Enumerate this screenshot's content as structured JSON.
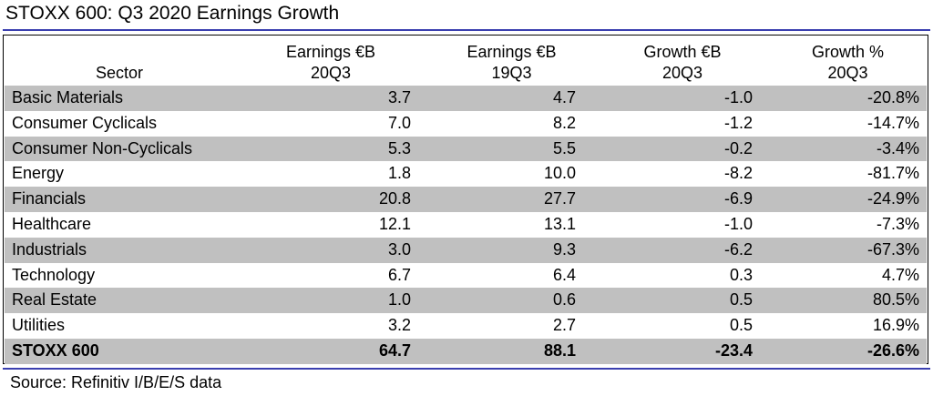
{
  "title": "STOXX 600: Q3 2020 Earnings Growth",
  "colors": {
    "rule": "#3a3fb0",
    "shade": "#c0c0c0",
    "text": "#000000"
  },
  "chart_data": {
    "type": "table",
    "columns": [
      {
        "line1": "",
        "line2": "Sector"
      },
      {
        "line1": "Earnings €B",
        "line2": "20Q3"
      },
      {
        "line1": "Earnings €B",
        "line2": "19Q3"
      },
      {
        "line1": "Growth €B",
        "line2": "20Q3"
      },
      {
        "line1": "Growth %",
        "line2": "20Q3"
      }
    ],
    "rows": [
      {
        "sector": "Basic Materials",
        "earnings_20q3": "3.7",
        "earnings_19q3": "4.7",
        "growth_eur_20q3": "-1.0",
        "growth_pct_20q3": "-20.8%"
      },
      {
        "sector": "Consumer Cyclicals",
        "earnings_20q3": "7.0",
        "earnings_19q3": "8.2",
        "growth_eur_20q3": "-1.2",
        "growth_pct_20q3": "-14.7%"
      },
      {
        "sector": "Consumer Non-Cyclicals",
        "earnings_20q3": "5.3",
        "earnings_19q3": "5.5",
        "growth_eur_20q3": "-0.2",
        "growth_pct_20q3": "-3.4%"
      },
      {
        "sector": "Energy",
        "earnings_20q3": "1.8",
        "earnings_19q3": "10.0",
        "growth_eur_20q3": "-8.2",
        "growth_pct_20q3": "-81.7%"
      },
      {
        "sector": "Financials",
        "earnings_20q3": "20.8",
        "earnings_19q3": "27.7",
        "growth_eur_20q3": "-6.9",
        "growth_pct_20q3": "-24.9%"
      },
      {
        "sector": "Healthcare",
        "earnings_20q3": "12.1",
        "earnings_19q3": "13.1",
        "growth_eur_20q3": "-1.0",
        "growth_pct_20q3": "-7.3%"
      },
      {
        "sector": "Industrials",
        "earnings_20q3": "3.0",
        "earnings_19q3": "9.3",
        "growth_eur_20q3": "-6.2",
        "growth_pct_20q3": "-67.3%"
      },
      {
        "sector": "Technology",
        "earnings_20q3": "6.7",
        "earnings_19q3": "6.4",
        "growth_eur_20q3": "0.3",
        "growth_pct_20q3": "4.7%"
      },
      {
        "sector": "Real Estate",
        "earnings_20q3": "1.0",
        "earnings_19q3": "0.6",
        "growth_eur_20q3": "0.5",
        "growth_pct_20q3": "80.5%"
      },
      {
        "sector": "Utilities",
        "earnings_20q3": "3.2",
        "earnings_19q3": "2.7",
        "growth_eur_20q3": "0.5",
        "growth_pct_20q3": "16.9%"
      }
    ],
    "total": {
      "sector": "STOXX 600",
      "earnings_20q3": "64.7",
      "earnings_19q3": "88.1",
      "growth_eur_20q3": "-23.4",
      "growth_pct_20q3": "-26.6%"
    }
  },
  "source": "Source: Refinitiv I/B/E/S data"
}
